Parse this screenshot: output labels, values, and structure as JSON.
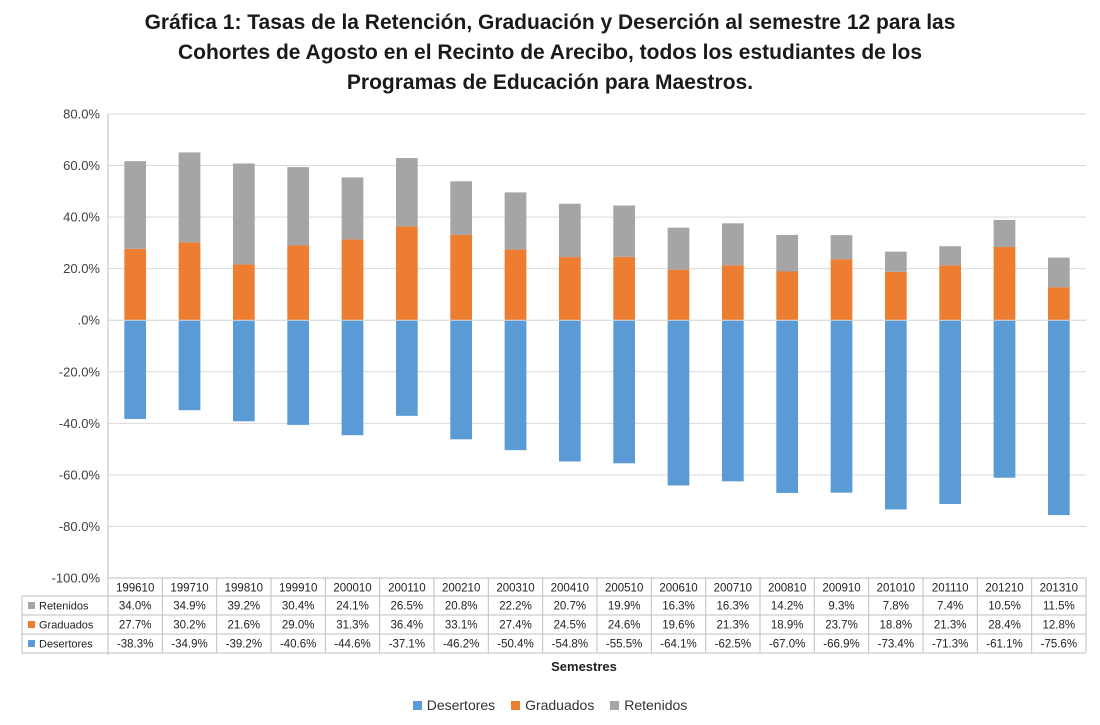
{
  "chart_data": {
    "type": "bar",
    "stacked": true,
    "title_lines": [
      "Gráfica 1: Tasas de la Retención, Graduación y Deserción al semestre 12 para  las",
      "Cohortes de Agosto en el Recinto de Arecibo, todos los estudiantes de los",
      "Programas de Educación para Maestros."
    ],
    "xlabel": "Semestres",
    "ylabel": "",
    "ylim": [
      -100,
      80
    ],
    "y_ticks": [
      -100,
      -80,
      -60,
      -40,
      -20,
      0,
      20,
      40,
      60,
      80
    ],
    "y_tick_labels": [
      "-100.0%",
      "-80.0%",
      "-60.0%",
      "-40.0%",
      "-20.0%",
      ".0%",
      "20.0%",
      "40.0%",
      "60.0%",
      "80.0%"
    ],
    "grid": true,
    "legend_position": "bottom",
    "categories": [
      "199610",
      "199710",
      "199810",
      "199910",
      "200010",
      "200110",
      "200210",
      "200310",
      "200410",
      "200510",
      "200610",
      "200710",
      "200810",
      "200910",
      "201010",
      "201110",
      "201210",
      "201310"
    ],
    "series": [
      {
        "name": "Desertores",
        "color": "#5b9bd5",
        "values": [
          -38.3,
          -34.9,
          -39.2,
          -40.6,
          -44.6,
          -37.1,
          -46.2,
          -50.4,
          -54.8,
          -55.5,
          -64.1,
          -62.5,
          -67.0,
          -66.9,
          -73.4,
          -71.3,
          -61.1,
          -75.6
        ],
        "labels": [
          "-38.3%",
          "-34.9%",
          "-39.2%",
          "-40.6%",
          "-44.6%",
          "-37.1%",
          "-46.2%",
          "-50.4%",
          "-54.8%",
          "-55.5%",
          "-64.1%",
          "-62.5%",
          "-67.0%",
          "-66.9%",
          "-73.4%",
          "-71.3%",
          "-61.1%",
          "-75.6%"
        ]
      },
      {
        "name": "Graduados",
        "color": "#ed7d31",
        "values": [
          27.7,
          30.2,
          21.6,
          29.0,
          31.3,
          36.4,
          33.1,
          27.4,
          24.5,
          24.6,
          19.6,
          21.3,
          18.9,
          23.7,
          18.8,
          21.3,
          28.4,
          12.8
        ],
        "labels": [
          "27.7%",
          "30.2%",
          "21.6%",
          "29.0%",
          "31.3%",
          "36.4%",
          "33.1%",
          "27.4%",
          "24.5%",
          "24.6%",
          "19.6%",
          "21.3%",
          "18.9%",
          "23.7%",
          "18.8%",
          "21.3%",
          "28.4%",
          "12.8%"
        ]
      },
      {
        "name": "Retenidos",
        "color": "#a5a5a5",
        "values": [
          34.0,
          34.9,
          39.2,
          30.4,
          24.1,
          26.5,
          20.8,
          22.2,
          20.7,
          19.9,
          16.3,
          16.3,
          14.2,
          9.3,
          7.8,
          7.4,
          10.5,
          11.5
        ],
        "labels": [
          "34.0%",
          "34.9%",
          "39.2%",
          "30.4%",
          "24.1%",
          "26.5%",
          "20.8%",
          "22.2%",
          "20.7%",
          "19.9%",
          "16.3%",
          "16.3%",
          "14.2%",
          "9.3%",
          "7.8%",
          "7.4%",
          "10.5%",
          "11.5%"
        ]
      }
    ],
    "table_row_order": [
      "Retenidos",
      "Graduados",
      "Desertores"
    ],
    "legend_order": [
      "Desertores",
      "Graduados",
      "Retenidos"
    ]
  }
}
